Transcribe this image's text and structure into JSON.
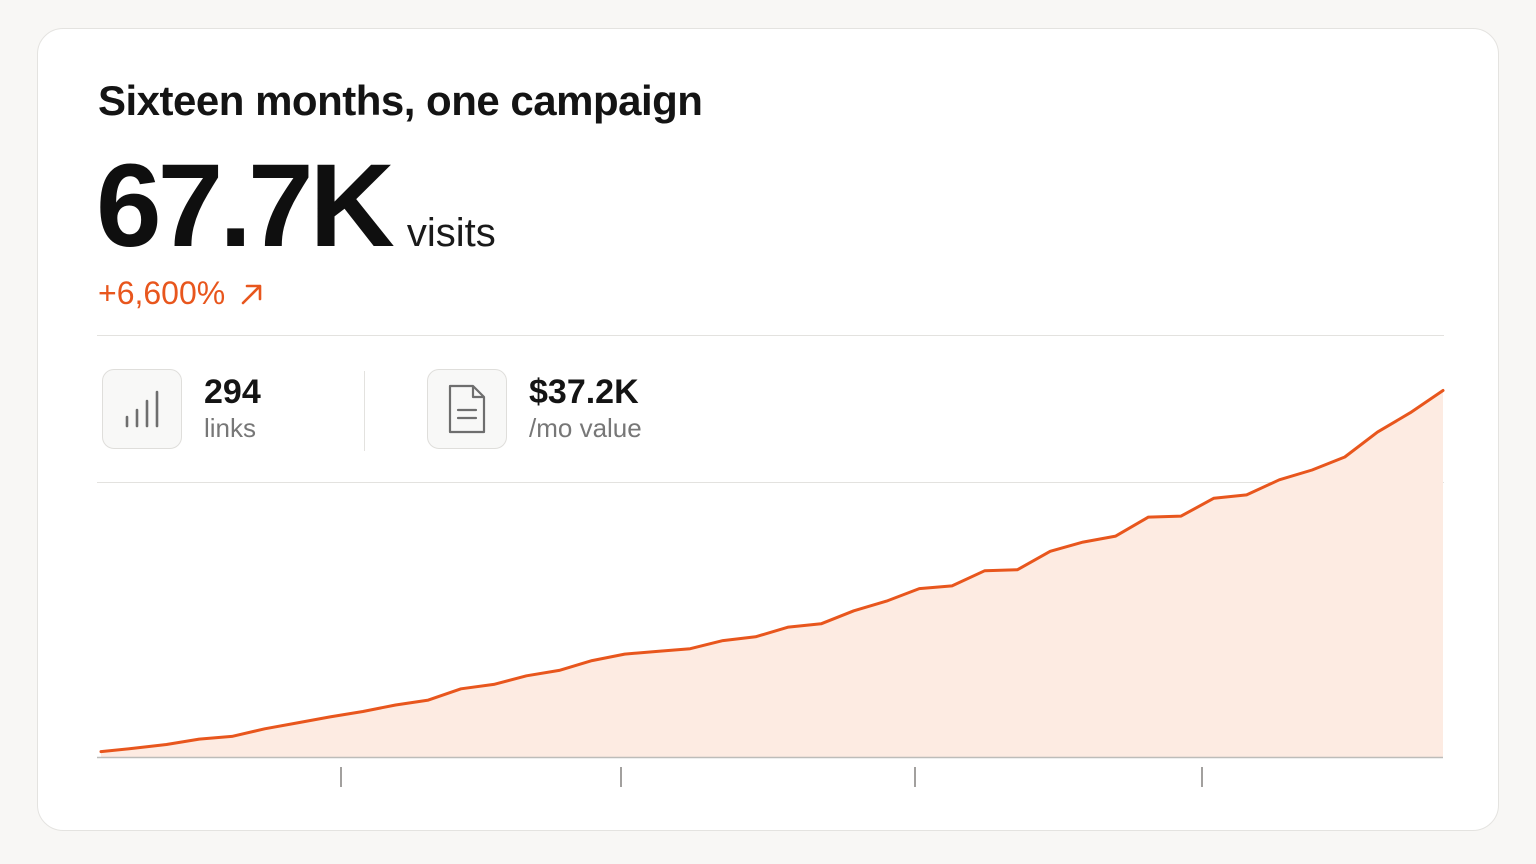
{
  "card": {
    "title": "Sixteen months, one campaign",
    "headline_value": "67.7K",
    "headline_unit": "visits",
    "change": "+6,600%",
    "change_icon": "arrow-up-right-icon",
    "accent_color": "#e8561d"
  },
  "stats": [
    {
      "value": "294",
      "label": "links",
      "icon": "bar-chart-icon"
    },
    {
      "value": "$37.2K",
      "label": "/mo value",
      "icon": "document-icon"
    }
  ],
  "chart_data": {
    "type": "area",
    "title": "",
    "xlabel": "",
    "ylabel": "",
    "x_ticks": [
      "",
      "",
      "",
      ""
    ],
    "grid": false,
    "color": "#e8561d",
    "fill_color": "#fdebe2",
    "series": [
      {
        "values": [
          1.0,
          1.6,
          2.3,
          3.3,
          3.8,
          5.2,
          6.3,
          7.4,
          8.4,
          9.6,
          10.5,
          12.6,
          13.4,
          15.0,
          16.0,
          17.8,
          19.0,
          19.5,
          20.0,
          21.5,
          22.2,
          24.0,
          24.6,
          27.0,
          28.8,
          31.1,
          31.6,
          34.4,
          34.6,
          38.0,
          39.7,
          40.8,
          44.3,
          44.5,
          47.8,
          48.4,
          51.2,
          53.0,
          55.4,
          60.0,
          63.6,
          67.7
        ]
      }
    ],
    "ylim": [
      0,
      70
    ]
  }
}
